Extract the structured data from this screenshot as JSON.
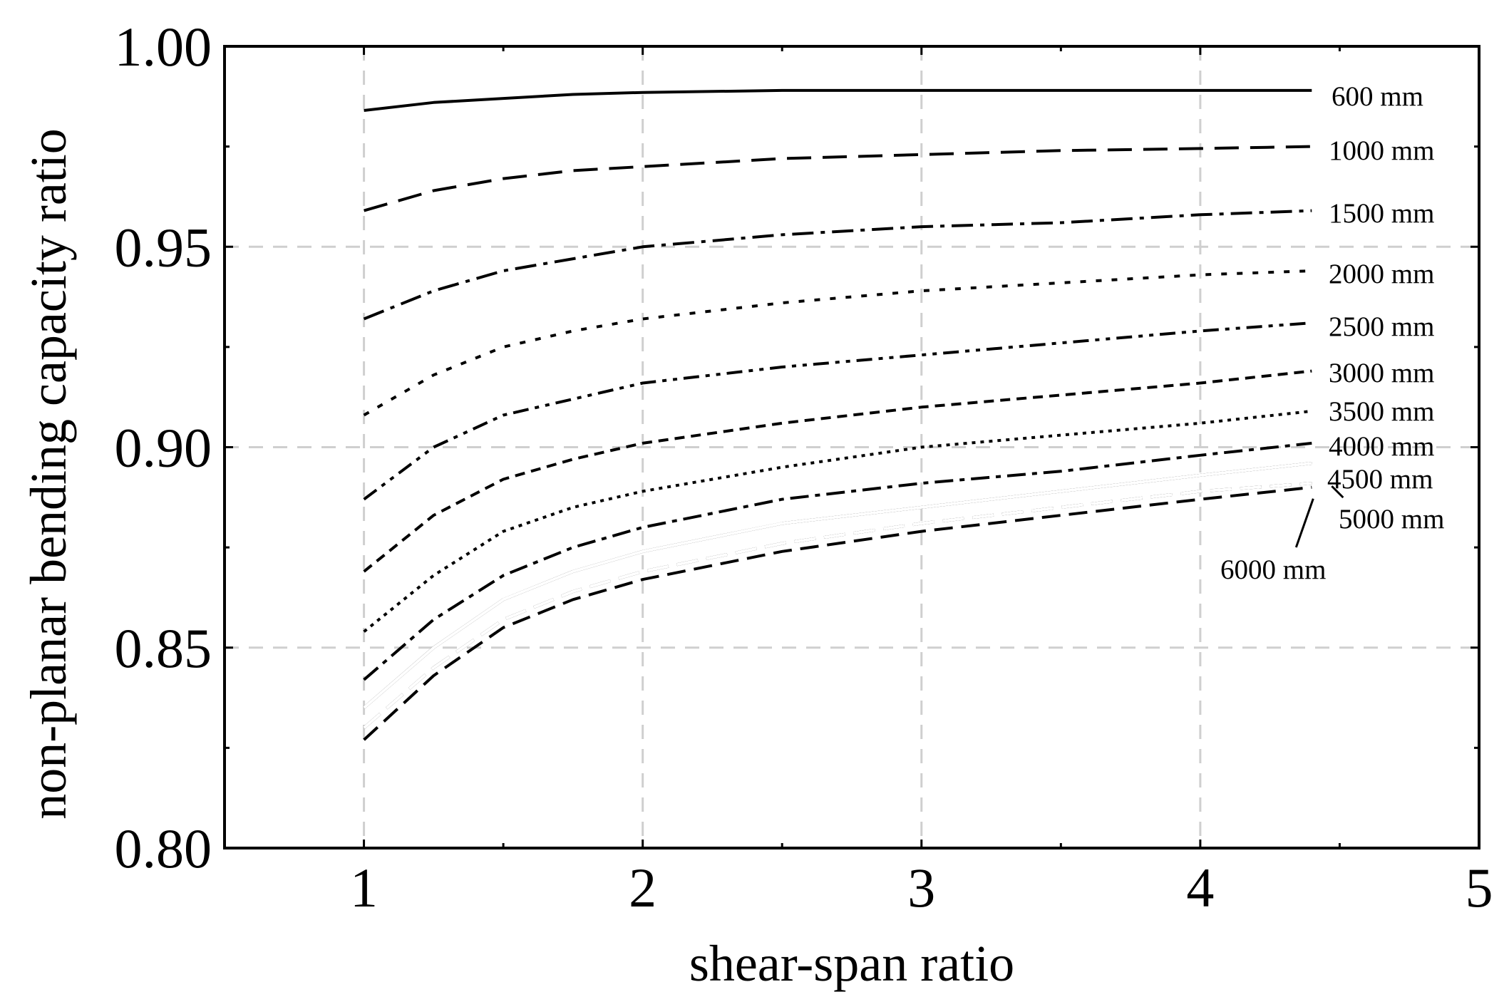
{
  "chart_data": {
    "type": "line",
    "title": "",
    "xlabel": "shear-span ratio",
    "ylabel": "non-planar bending capacity ratio",
    "xlim": [
      0.5,
      5
    ],
    "ylim": [
      0.8,
      1.0
    ],
    "xticks": [
      1,
      2,
      3,
      4,
      5
    ],
    "xtick_labels": [
      "1",
      "2",
      "3",
      "4",
      "5"
    ],
    "yticks": [
      0.8,
      0.85,
      0.9,
      0.95,
      1.0
    ],
    "ytick_labels": [
      "0.80",
      "0.85",
      "0.90",
      "0.95",
      "1.00"
    ],
    "grid": true,
    "legend": "inline labels at right end of curves",
    "x": [
      1.0,
      1.25,
      1.5,
      1.75,
      2.0,
      2.5,
      3.0,
      3.5,
      4.0,
      4.4
    ],
    "series": [
      {
        "name": "600 mm",
        "style": "solid",
        "values": [
          0.984,
          0.986,
          0.987,
          0.988,
          0.9885,
          0.989,
          0.989,
          0.989,
          0.989,
          0.989
        ]
      },
      {
        "name": "1000 mm",
        "style": "dashed",
        "values": [
          0.959,
          0.964,
          0.967,
          0.969,
          0.97,
          0.972,
          0.973,
          0.974,
          0.9745,
          0.975
        ]
      },
      {
        "name": "1500 mm",
        "style": "dashdot",
        "values": [
          0.932,
          0.939,
          0.944,
          0.947,
          0.95,
          0.953,
          0.955,
          0.956,
          0.958,
          0.959
        ]
      },
      {
        "name": "2000 mm",
        "style": "dotted",
        "values": [
          0.908,
          0.918,
          0.925,
          0.929,
          0.932,
          0.936,
          0.939,
          0.941,
          0.943,
          0.944
        ]
      },
      {
        "name": "2500 mm",
        "style": "dashdotdot",
        "values": [
          0.887,
          0.9,
          0.908,
          0.912,
          0.916,
          0.92,
          0.923,
          0.926,
          0.929,
          0.931
        ]
      },
      {
        "name": "3000 mm",
        "style": "shortdash",
        "values": [
          0.869,
          0.883,
          0.892,
          0.897,
          0.901,
          0.906,
          0.91,
          0.913,
          0.916,
          0.919
        ]
      },
      {
        "name": "3500 mm",
        "style": "densedot",
        "values": [
          0.854,
          0.868,
          0.879,
          0.885,
          0.889,
          0.895,
          0.9,
          0.903,
          0.906,
          0.909
        ]
      },
      {
        "name": "4000 mm",
        "style": "longdashdot",
        "values": [
          0.842,
          0.857,
          0.868,
          0.875,
          0.88,
          0.887,
          0.891,
          0.894,
          0.898,
          0.901
        ]
      },
      {
        "name": "4500 mm",
        "style": "double",
        "values": [
          0.835,
          0.85,
          0.862,
          0.869,
          0.874,
          0.881,
          0.885,
          0.889,
          0.893,
          0.896
        ]
      },
      {
        "name": "5000 mm",
        "style": "doubledash",
        "values": [
          0.83,
          0.845,
          0.857,
          0.864,
          0.869,
          0.876,
          0.881,
          0.885,
          0.889,
          0.891
        ]
      },
      {
        "name": "6000 mm",
        "style": "heavydash",
        "values": [
          0.827,
          0.843,
          0.855,
          0.862,
          0.867,
          0.874,
          0.879,
          0.883,
          0.887,
          0.89
        ]
      }
    ]
  }
}
